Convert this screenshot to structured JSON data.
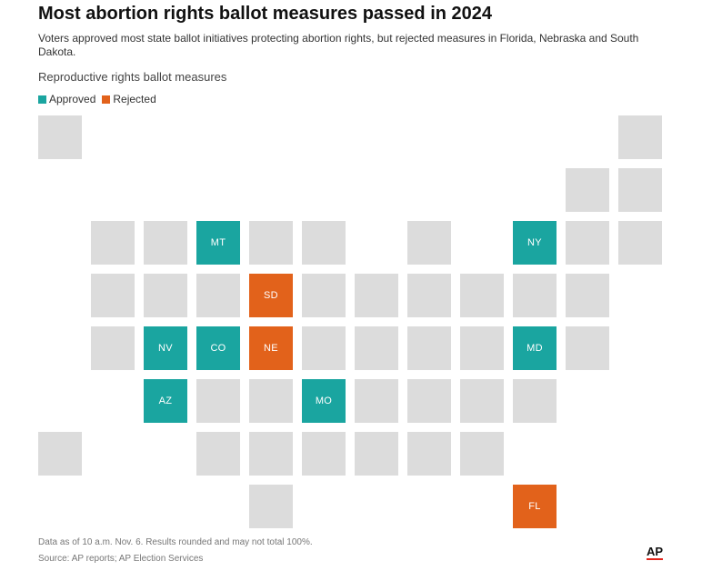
{
  "header": {
    "title": "Most abortion rights ballot measures passed in 2024",
    "subtitle": "Voters approved most state ballot initiatives protecting abortion rights, but rejected measures in Florida, Nebraska and South Dakota.",
    "section_label": "Reproductive rights ballot measures"
  },
  "legend": {
    "items": [
      {
        "label": "Approved",
        "color": "#1aa5a0"
      },
      {
        "label": "Rejected",
        "color": "#e2621b"
      }
    ]
  },
  "colors": {
    "approved": "#1aa5a0",
    "rejected": "#e2621b",
    "none": "#dcdcdc"
  },
  "map": {
    "tiles": [
      {
        "row": 0,
        "col": 0,
        "label": "",
        "status": "none"
      },
      {
        "row": 0,
        "col": 11,
        "label": "",
        "status": "none"
      },
      {
        "row": 1,
        "col": 10,
        "label": "",
        "status": "none"
      },
      {
        "row": 1,
        "col": 11,
        "label": "",
        "status": "none"
      },
      {
        "row": 2,
        "col": 1,
        "label": "",
        "status": "none"
      },
      {
        "row": 2,
        "col": 2,
        "label": "",
        "status": "none"
      },
      {
        "row": 2,
        "col": 3,
        "label": "MT",
        "status": "approved"
      },
      {
        "row": 2,
        "col": 4,
        "label": "",
        "status": "none"
      },
      {
        "row": 2,
        "col": 5,
        "label": "",
        "status": "none"
      },
      {
        "row": 2,
        "col": 7,
        "label": "",
        "status": "none"
      },
      {
        "row": 2,
        "col": 9,
        "label": "NY",
        "status": "approved"
      },
      {
        "row": 2,
        "col": 10,
        "label": "",
        "status": "none"
      },
      {
        "row": 2,
        "col": 11,
        "label": "",
        "status": "none"
      },
      {
        "row": 3,
        "col": 1,
        "label": "",
        "status": "none"
      },
      {
        "row": 3,
        "col": 2,
        "label": "",
        "status": "none"
      },
      {
        "row": 3,
        "col": 3,
        "label": "",
        "status": "none"
      },
      {
        "row": 3,
        "col": 4,
        "label": "SD",
        "status": "rejected"
      },
      {
        "row": 3,
        "col": 5,
        "label": "",
        "status": "none"
      },
      {
        "row": 3,
        "col": 6,
        "label": "",
        "status": "none"
      },
      {
        "row": 3,
        "col": 7,
        "label": "",
        "status": "none"
      },
      {
        "row": 3,
        "col": 8,
        "label": "",
        "status": "none"
      },
      {
        "row": 3,
        "col": 9,
        "label": "",
        "status": "none"
      },
      {
        "row": 3,
        "col": 10,
        "label": "",
        "status": "none"
      },
      {
        "row": 4,
        "col": 1,
        "label": "",
        "status": "none"
      },
      {
        "row": 4,
        "col": 2,
        "label": "NV",
        "status": "approved"
      },
      {
        "row": 4,
        "col": 3,
        "label": "CO",
        "status": "approved"
      },
      {
        "row": 4,
        "col": 4,
        "label": "NE",
        "status": "rejected"
      },
      {
        "row": 4,
        "col": 5,
        "label": "",
        "status": "none"
      },
      {
        "row": 4,
        "col": 6,
        "label": "",
        "status": "none"
      },
      {
        "row": 4,
        "col": 7,
        "label": "",
        "status": "none"
      },
      {
        "row": 4,
        "col": 8,
        "label": "",
        "status": "none"
      },
      {
        "row": 4,
        "col": 9,
        "label": "MD",
        "status": "approved"
      },
      {
        "row": 4,
        "col": 10,
        "label": "",
        "status": "none"
      },
      {
        "row": 5,
        "col": 2,
        "label": "AZ",
        "status": "approved"
      },
      {
        "row": 5,
        "col": 3,
        "label": "",
        "status": "none"
      },
      {
        "row": 5,
        "col": 4,
        "label": "",
        "status": "none"
      },
      {
        "row": 5,
        "col": 5,
        "label": "MO",
        "status": "approved"
      },
      {
        "row": 5,
        "col": 6,
        "label": "",
        "status": "none"
      },
      {
        "row": 5,
        "col": 7,
        "label": "",
        "status": "none"
      },
      {
        "row": 5,
        "col": 8,
        "label": "",
        "status": "none"
      },
      {
        "row": 5,
        "col": 9,
        "label": "",
        "status": "none"
      },
      {
        "row": 6,
        "col": 0,
        "label": "",
        "status": "none"
      },
      {
        "row": 6,
        "col": 3,
        "label": "",
        "status": "none"
      },
      {
        "row": 6,
        "col": 4,
        "label": "",
        "status": "none"
      },
      {
        "row": 6,
        "col": 5,
        "label": "",
        "status": "none"
      },
      {
        "row": 6,
        "col": 6,
        "label": "",
        "status": "none"
      },
      {
        "row": 6,
        "col": 7,
        "label": "",
        "status": "none"
      },
      {
        "row": 6,
        "col": 8,
        "label": "",
        "status": "none"
      },
      {
        "row": 7,
        "col": 4,
        "label": "",
        "status": "none"
      },
      {
        "row": 7,
        "col": 9,
        "label": "FL",
        "status": "rejected"
      }
    ]
  },
  "footer": {
    "note": "Data as of 10 a.m. Nov. 6. Results rounded and may not total 100%.",
    "source": "Source: AP reports; AP Election Services",
    "logo": "AP"
  }
}
